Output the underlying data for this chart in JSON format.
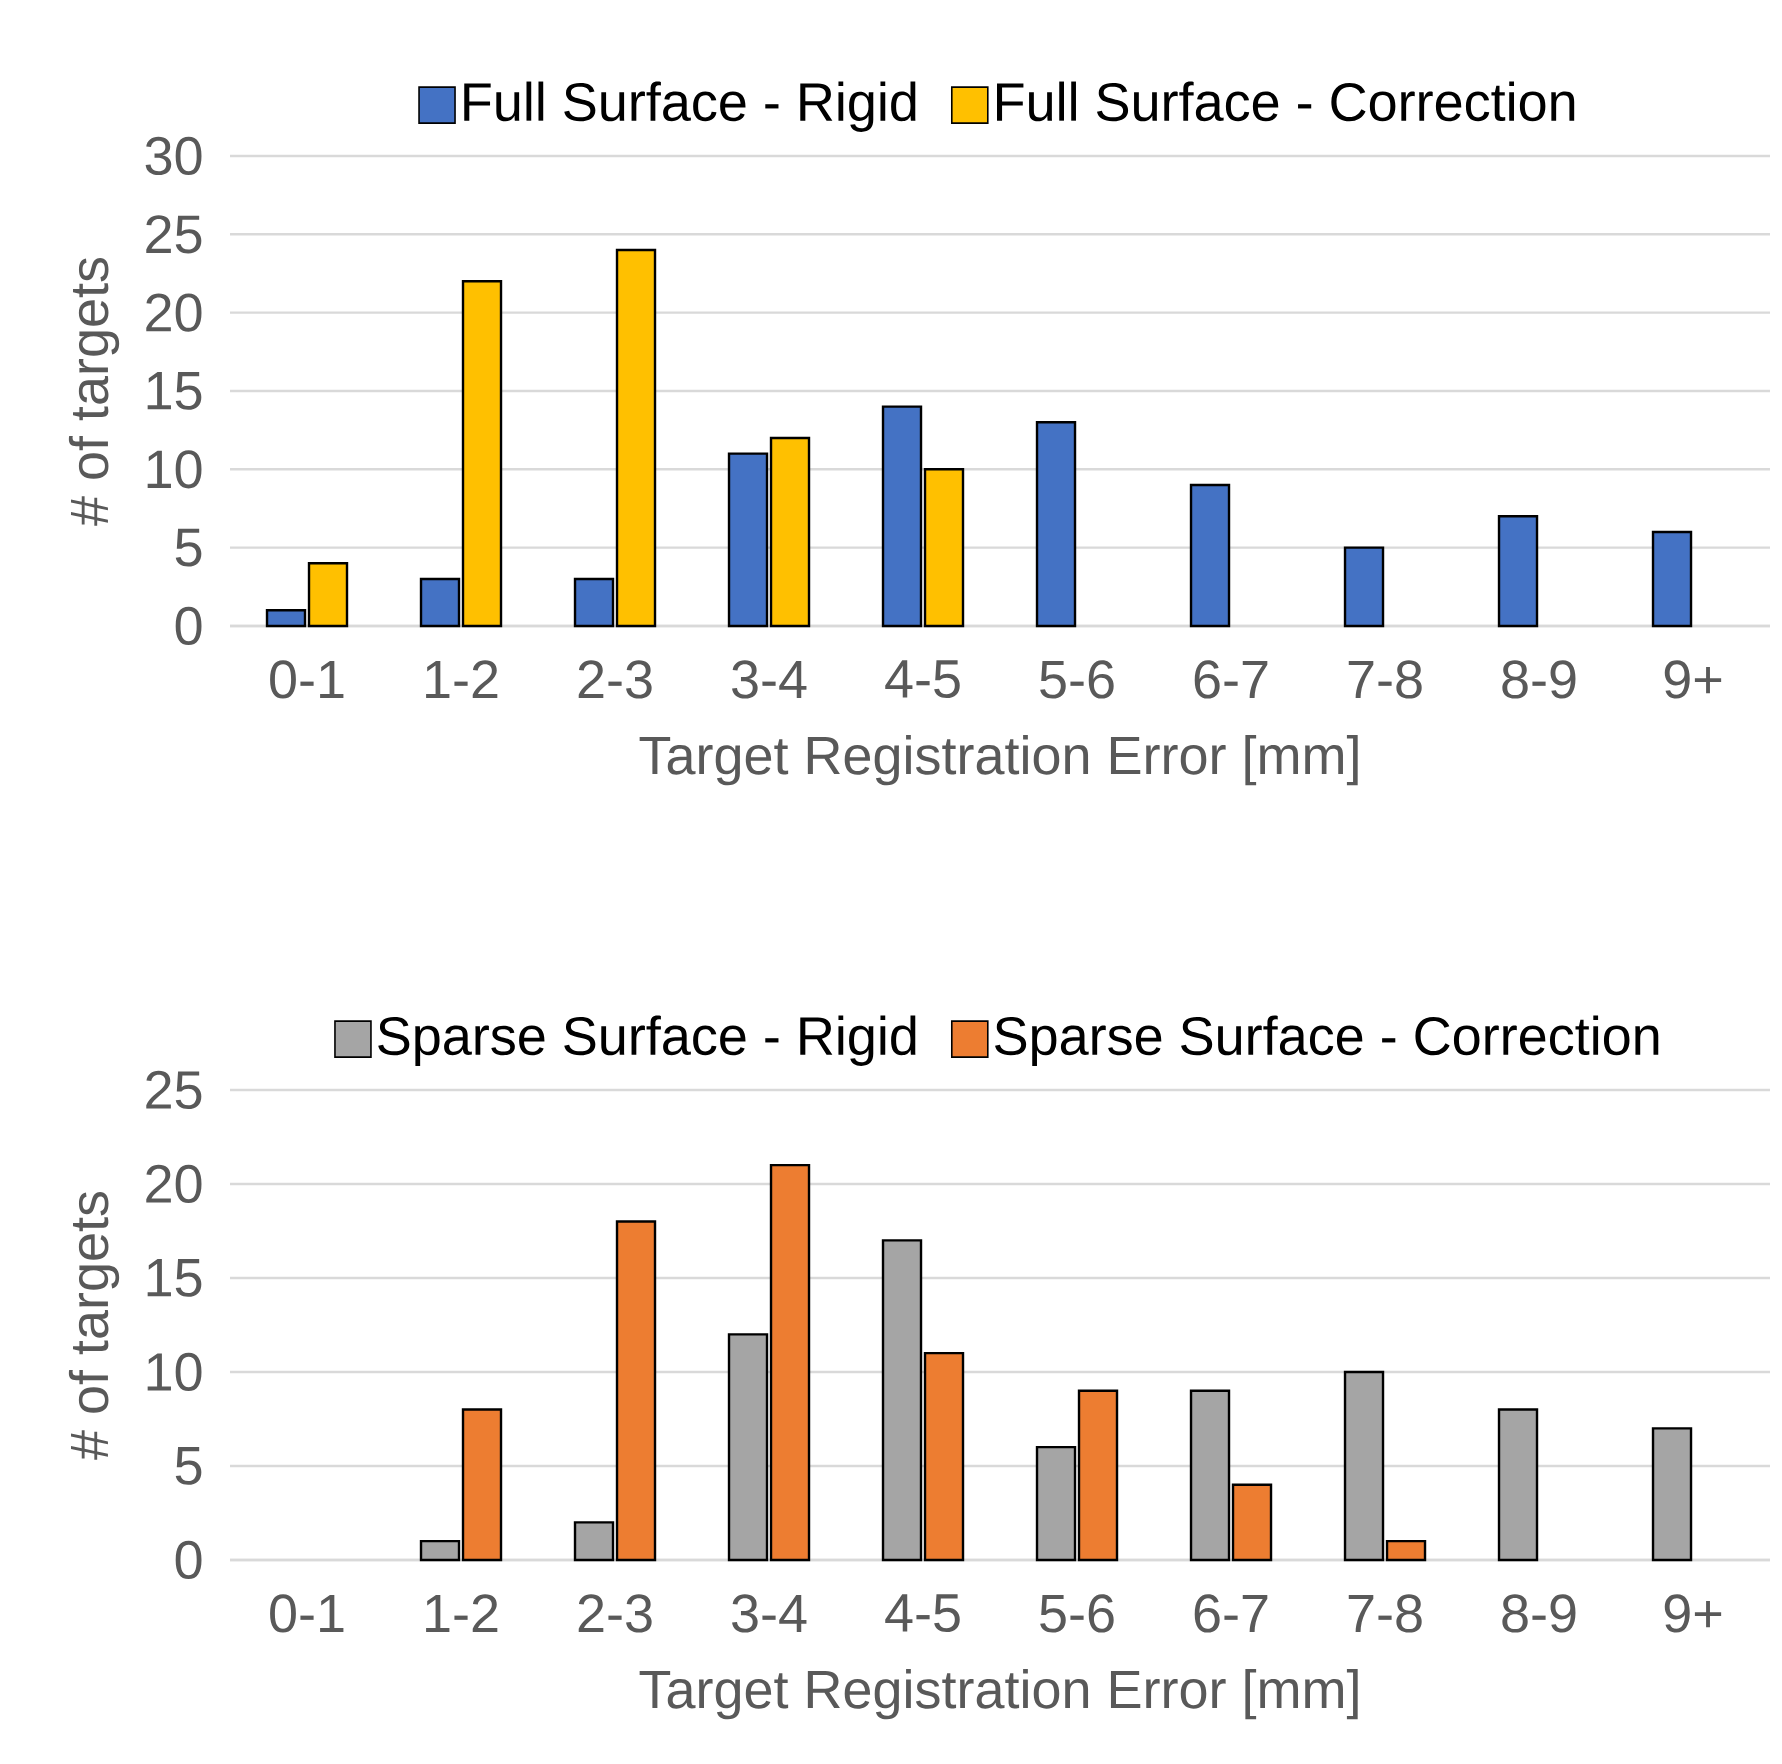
{
  "chart_data": [
    {
      "type": "bar",
      "categories": [
        "0-1",
        "1-2",
        "2-3",
        "3-4",
        "4-5",
        "5-6",
        "6-7",
        "7-8",
        "8-9",
        "9+"
      ],
      "xlabel": "Target Registration Error [mm]",
      "ylabel": "# of targets",
      "ylim": [
        0,
        30
      ],
      "yticks": [
        0,
        5,
        10,
        15,
        20,
        25,
        30
      ],
      "grid": "y",
      "legend": "top",
      "series": [
        {
          "name": "Full Surface - Rigid",
          "color": "#4472c4",
          "values": [
            1,
            3,
            3,
            11,
            14,
            13,
            9,
            5,
            7,
            6
          ]
        },
        {
          "name": "Full Surface - Correction",
          "color": "#ffc000",
          "values": [
            4,
            22,
            24,
            12,
            10,
            null,
            null,
            null,
            null,
            null
          ]
        }
      ]
    },
    {
      "type": "bar",
      "categories": [
        "0-1",
        "1-2",
        "2-3",
        "3-4",
        "4-5",
        "5-6",
        "6-7",
        "7-8",
        "8-9",
        "9+"
      ],
      "xlabel": "Target Registration Error [mm]",
      "ylabel": "# of targets",
      "ylim": [
        0,
        25
      ],
      "yticks": [
        0,
        5,
        10,
        15,
        20,
        25
      ],
      "grid": "y",
      "legend": "top",
      "series": [
        {
          "name": "Sparse Surface - Rigid",
          "color": "#a5a5a5",
          "values": [
            null,
            1,
            2,
            12,
            17,
            6,
            9,
            10,
            8,
            7
          ]
        },
        {
          "name": "Sparse Surface - Correction",
          "color": "#ed7d31",
          "values": [
            null,
            8,
            18,
            21,
            11,
            9,
            4,
            1,
            null,
            null
          ]
        }
      ]
    }
  ]
}
